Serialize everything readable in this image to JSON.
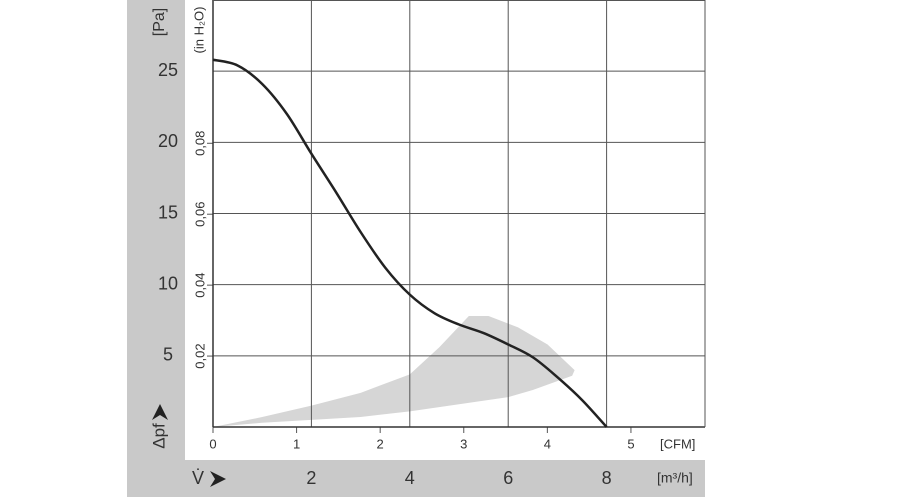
{
  "chart_data": {
    "type": "line",
    "y_label": "[Pa]",
    "y2_label": "(in H₂O)",
    "y_symbol": "Δpf",
    "x_symbol": "V̇",
    "x_label": "[m³/h]",
    "x2_label": "[CFM]",
    "xlim": [
      0,
      10
    ],
    "xticks": [
      2,
      4,
      6,
      8
    ],
    "x2lim": [
      0,
      5.886
    ],
    "x2ticks": [
      0,
      1,
      2,
      3,
      4,
      5
    ],
    "ylim": [
      0,
      30
    ],
    "yticks": [
      5,
      10,
      15,
      20,
      25
    ],
    "y2lim": [
      0,
      0.1204
    ],
    "y2ticks": [
      {
        "value": 0.02,
        "label": "0,02"
      },
      {
        "value": 0.04,
        "label": "0,04"
      },
      {
        "value": 0.06,
        "label": "0,06"
      },
      {
        "value": 0.08,
        "label": "0,08"
      }
    ],
    "grid": true,
    "series": [
      {
        "color": "#222222",
        "x": [
          0,
          0.5,
          1,
          1.5,
          2,
          2.5,
          3,
          3.5,
          4,
          4.5,
          5,
          5.5,
          6,
          6.5,
          7,
          7.5,
          8
        ],
        "values": [
          25.8,
          25.4,
          24.1,
          22.0,
          19.2,
          16.5,
          13.7,
          11.2,
          9.3,
          8.0,
          7.2,
          6.6,
          5.8,
          4.9,
          3.5,
          1.9,
          0
        ]
      }
    ],
    "region": {
      "color": "#d6d6d6",
      "x": [
        0,
        1,
        2,
        3,
        4,
        4.6,
        5.2,
        5.6,
        6.2,
        6.8,
        7.35,
        7.3,
        6.5,
        6,
        5,
        4,
        3,
        2,
        1,
        0
      ],
      "y": [
        0,
        0.7,
        1.5,
        2.4,
        3.7,
        5.6,
        7.8,
        7.8,
        7.0,
        5.8,
        4.0,
        3.6,
        2.6,
        2.1,
        1.6,
        1.1,
        0.7,
        0.5,
        0.3,
        0
      ]
    }
  }
}
